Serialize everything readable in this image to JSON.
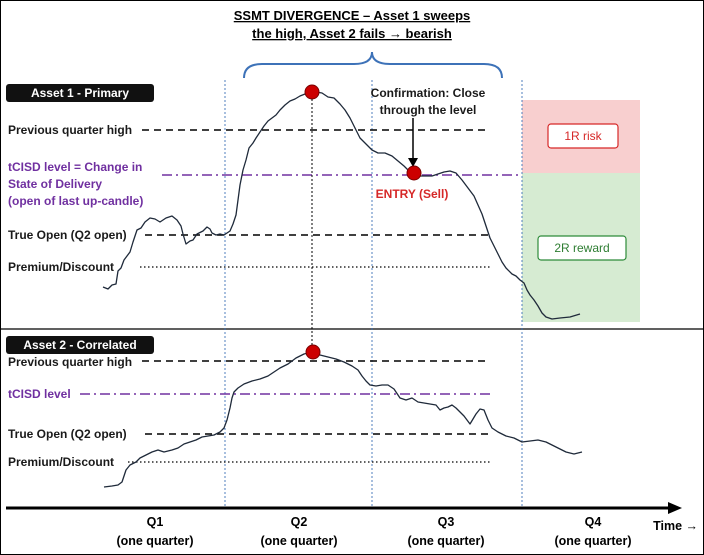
{
  "title": {
    "line1": "SSMT DIVERGENCE – Asset 1 sweeps",
    "line2": "the high, Asset 2 fails → bearish"
  },
  "panel1": {
    "tag": "Asset 1 - Primary",
    "labels": {
      "prev_high": "Previous quarter high",
      "tcisd_1": "tCISD level = Change in",
      "tcisd_2": "State of Delivery",
      "tcisd_3": "(open of last up-candle)",
      "true_open": "True Open (Q2 open)",
      "premium": "Premium/Discount"
    },
    "confirmation_1": "Confirmation: Close",
    "confirmation_2": "through the level",
    "entry": "ENTRY (Sell)",
    "risk": "1R risk",
    "reward": "2R reward"
  },
  "panel2": {
    "tag": "Asset 2 - Correlated",
    "labels": {
      "prev_high": "Previous quarter high",
      "tcisd": "tCISD level",
      "true_open": "True Open (Q2 open)",
      "premium": "Premium/Discount"
    }
  },
  "axis": {
    "quarters": [
      {
        "name": "Q1",
        "sub": "(one quarter)"
      },
      {
        "name": "Q2",
        "sub": "(one quarter)"
      },
      {
        "name": "Q3",
        "sub": "(one quarter)"
      },
      {
        "name": "Q4",
        "sub": "(one quarter)"
      }
    ],
    "time_label": "Time →"
  },
  "colors": {
    "tcisd": "#7030a0",
    "risk_fill": "#f8cfcf",
    "reward_fill": "#d6ebd2",
    "marker": "#cc0000",
    "brace": "#3d72b8",
    "divider": "#3d72b8"
  }
}
